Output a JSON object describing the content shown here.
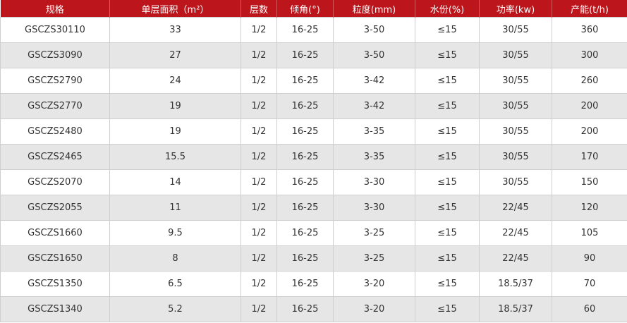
{
  "header": [
    "规格",
    "单层面积（m²）",
    "层数",
    "倾角(°)",
    "粒度(mm)",
    "水份(%)",
    "功率(kw)",
    "产能(t/h)"
  ],
  "rows": [
    [
      "GSCZS30110",
      "33",
      "1/2",
      "16-25",
      "3-50",
      "≤15",
      "30/55",
      "360"
    ],
    [
      "GSCZS3090",
      "27",
      "1/2",
      "16-25",
      "3-50",
      "≤15",
      "30/55",
      "300"
    ],
    [
      "GSCZS2790",
      "24",
      "1/2",
      "16-25",
      "3-42",
      "≤15",
      "30/55",
      "260"
    ],
    [
      "GSCZS2770",
      "19",
      "1/2",
      "16-25",
      "3-42",
      "≤15",
      "30/55",
      "200"
    ],
    [
      "GSCZS2480",
      "19",
      "1/2",
      "16-25",
      "3-35",
      "≤15",
      "30/55",
      "200"
    ],
    [
      "GSCZS2465",
      "15.5",
      "1/2",
      "16-25",
      "3-35",
      "≤15",
      "30/55",
      "170"
    ],
    [
      "GSCZS2070",
      "14",
      "1/2",
      "16-25",
      "3-30",
      "≤15",
      "30/55",
      "150"
    ],
    [
      "GSCZS2055",
      "11",
      "1/2",
      "16-25",
      "3-30",
      "≤15",
      "22/45",
      "120"
    ],
    [
      "GSCZS1660",
      "9.5",
      "1/2",
      "16-25",
      "3-25",
      "≤15",
      "22/45",
      "105"
    ],
    [
      "GSCZS1650",
      "8",
      "1/2",
      "16-25",
      "3-25",
      "≤15",
      "22/45",
      "90"
    ],
    [
      "GSCZS1350",
      "6.5",
      "1/2",
      "16-25",
      "3-20",
      "≤15",
      "18.5/37",
      "70"
    ],
    [
      "GSCZS1340",
      "5.2",
      "1/2",
      "16-25",
      "3-20",
      "≤15",
      "18.5/37",
      "60"
    ]
  ],
  "colors": {
    "header_bg": "#bc151b",
    "alt_row_bg": "#e6e6e6"
  }
}
